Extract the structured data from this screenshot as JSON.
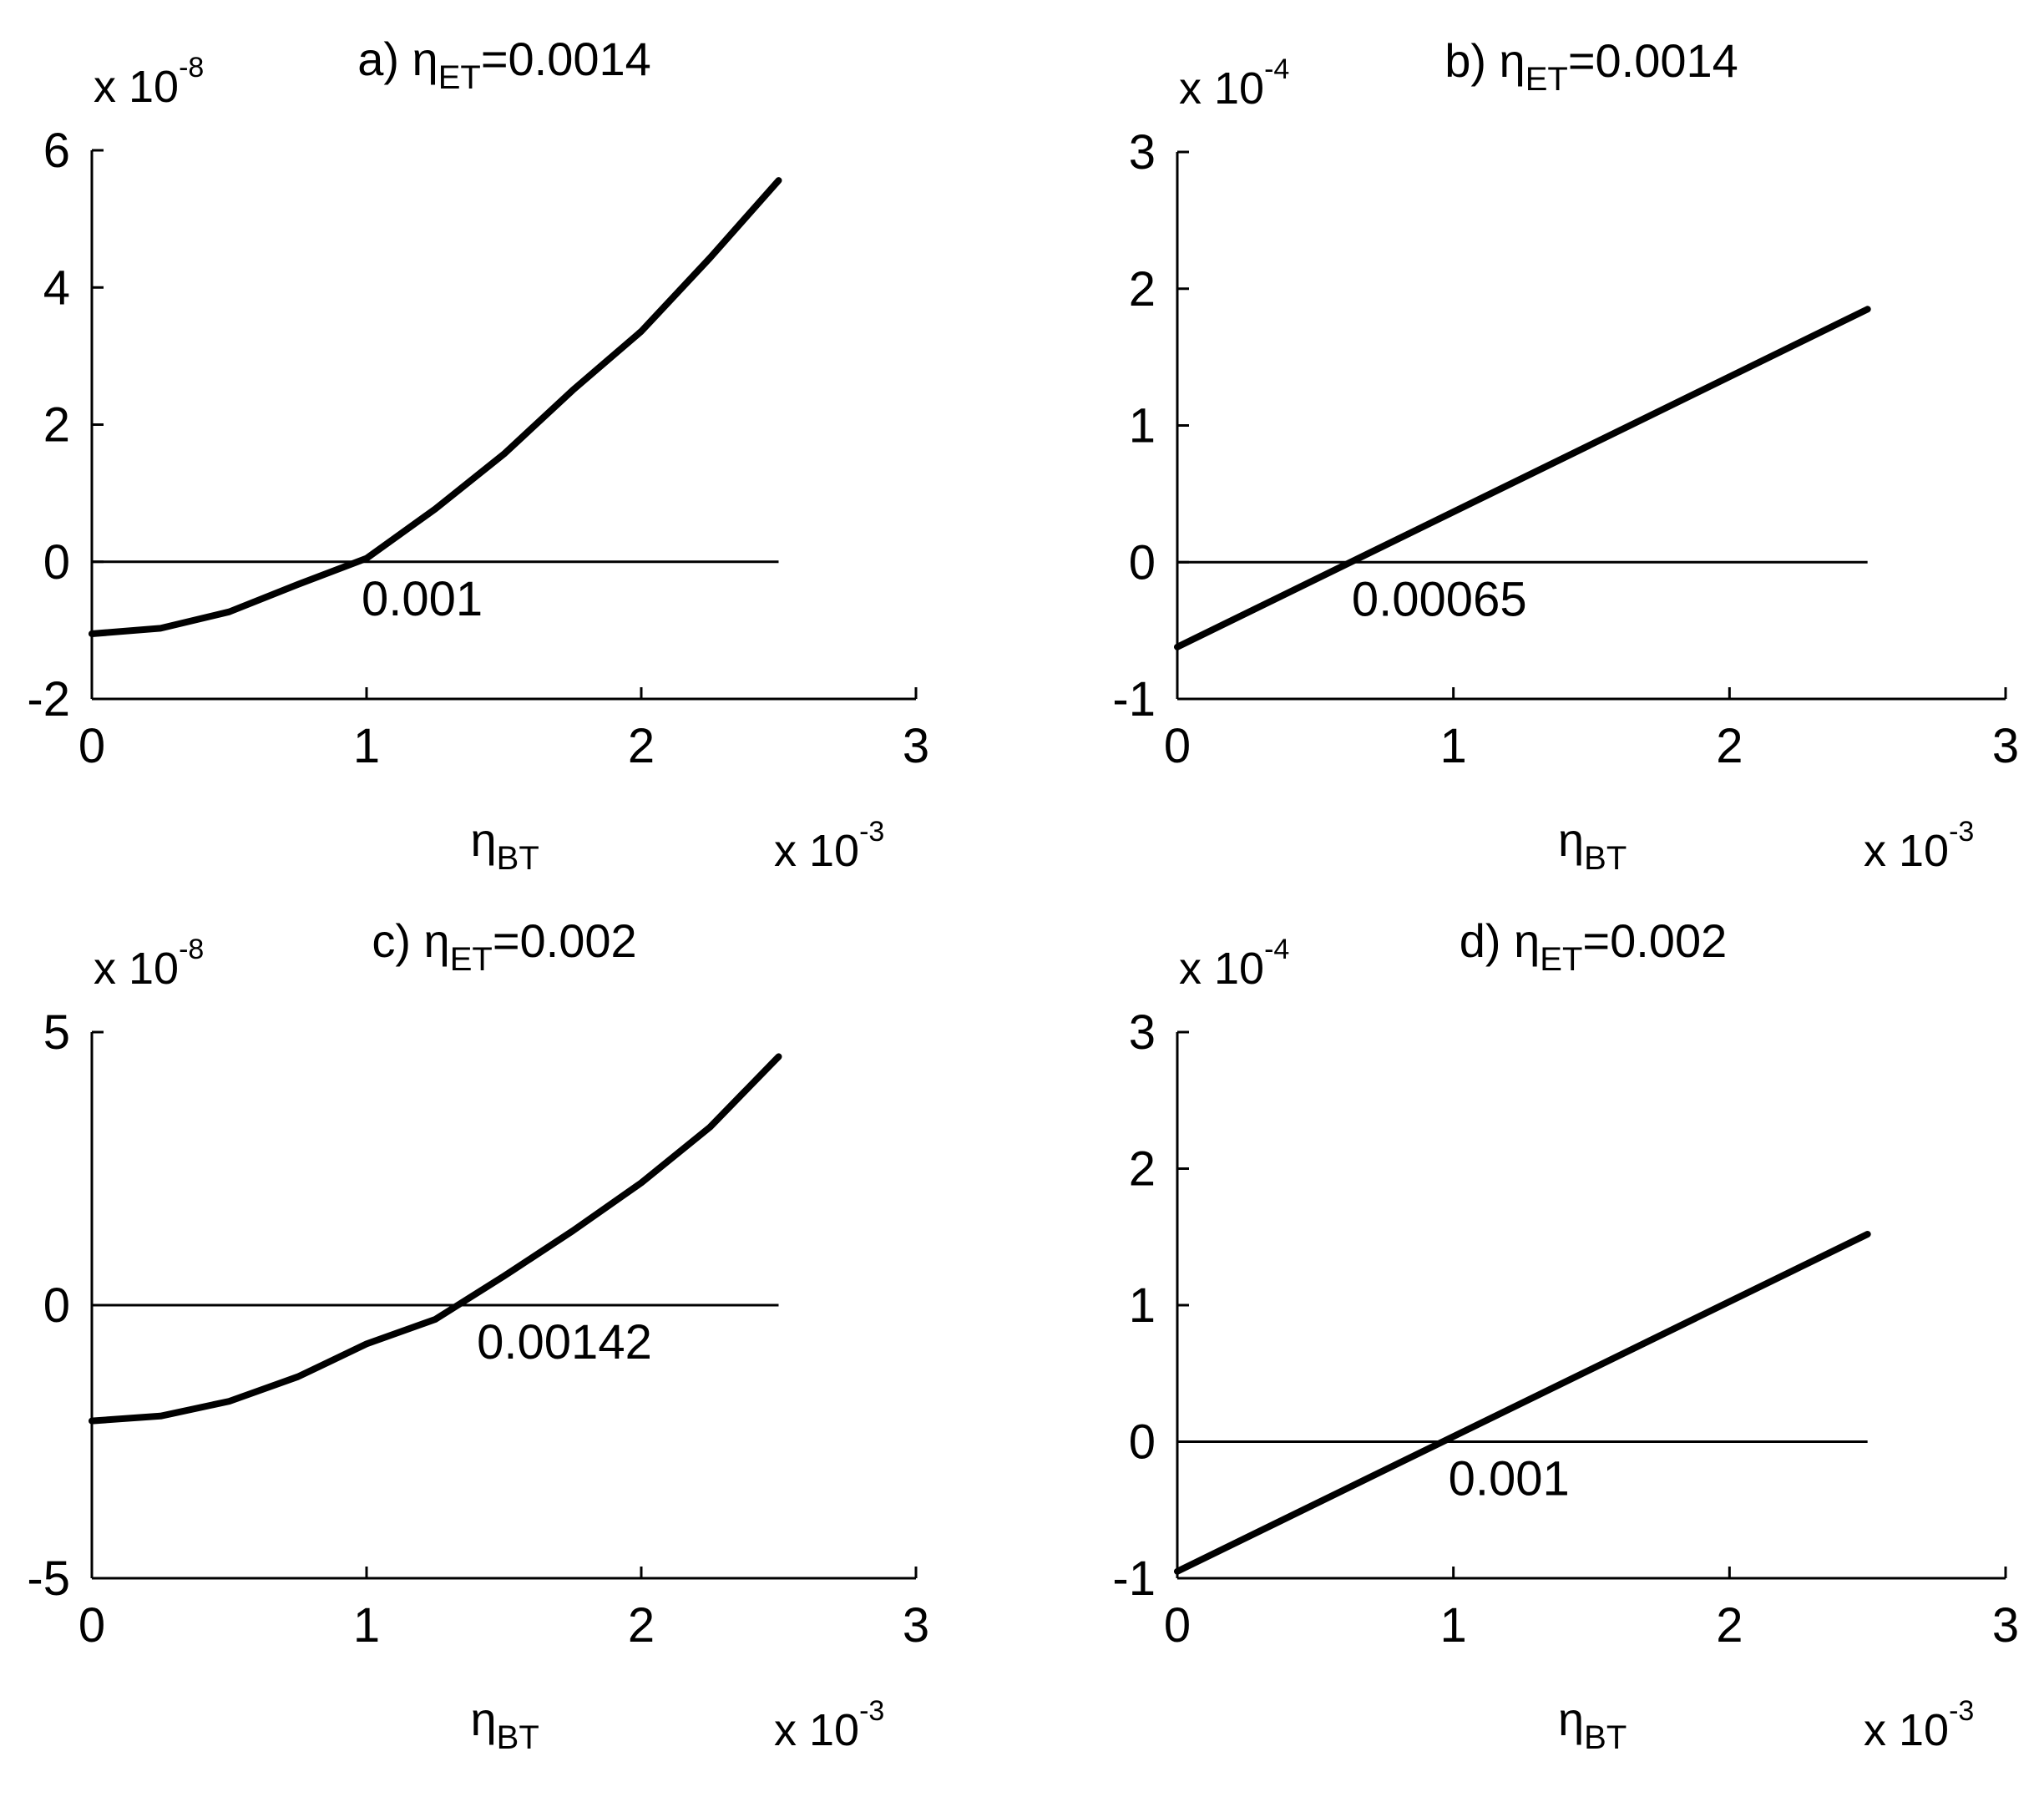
{
  "figure": {
    "background": "#ffffff",
    "line_color": "#000000"
  },
  "chart_data": [
    {
      "id": "a",
      "type": "line",
      "title": {
        "prefix": "a) ",
        "symbol": "η",
        "subscript": "ET",
        "suffix": "=0.0014"
      },
      "xlabel": {
        "symbol": "η",
        "subscript": "BT"
      },
      "x_multiplier": {
        "base": "x 10",
        "exp": "-3"
      },
      "y_multiplier": {
        "base": "x 10",
        "exp": "-8"
      },
      "xlim": [
        0,
        3
      ],
      "ylim": [
        -2,
        6
      ],
      "xticks": [
        0,
        1,
        2,
        3
      ],
      "yticks": [
        -2,
        0,
        2,
        4,
        6
      ],
      "xtick_labels": [
        "0",
        "1",
        "2",
        "3"
      ],
      "ytick_labels": [
        "-2",
        "0",
        "2",
        "4",
        "6"
      ],
      "grid": false,
      "series": [
        {
          "kind": "curve",
          "x": [
            0,
            0.25,
            0.5,
            0.75,
            1.0,
            1.25,
            1.5,
            1.75,
            2.0,
            2.25,
            2.5
          ],
          "y": [
            -1.05,
            -0.97,
            -0.73,
            -0.33,
            0.05,
            0.77,
            1.57,
            2.5,
            3.36,
            4.43,
            5.56
          ]
        },
        {
          "kind": "zero-line",
          "x": [
            0,
            2.5
          ],
          "y": [
            0,
            0
          ]
        }
      ],
      "annotation": {
        "text": "0.001",
        "x": 1.0,
        "y": 0
      }
    },
    {
      "id": "b",
      "type": "line",
      "title": {
        "prefix": "b) ",
        "symbol": "η",
        "subscript": "ET",
        "suffix": "=0.0014"
      },
      "xlabel": {
        "symbol": "η",
        "subscript": "BT"
      },
      "x_multiplier": {
        "base": "x 10",
        "exp": "-3"
      },
      "y_multiplier": {
        "base": "x 10",
        "exp": "-4"
      },
      "xlim": [
        0,
        3
      ],
      "ylim": [
        -1,
        3
      ],
      "xticks": [
        0,
        1,
        2,
        3
      ],
      "yticks": [
        -1,
        0,
        1,
        2,
        3
      ],
      "xtick_labels": [
        "0",
        "1",
        "2",
        "3"
      ],
      "ytick_labels": [
        "-1",
        "0",
        "1",
        "2",
        "3"
      ],
      "grid": false,
      "series": [
        {
          "kind": "curve",
          "x": [
            0,
            2.5
          ],
          "y": [
            -0.62,
            1.85
          ]
        },
        {
          "kind": "zero-line",
          "x": [
            0,
            2.5
          ],
          "y": [
            0,
            0
          ]
        }
      ],
      "annotation": {
        "text": "0.00065",
        "x": 0.65,
        "y": 0
      }
    },
    {
      "id": "c",
      "type": "line",
      "title": {
        "prefix": "c) ",
        "symbol": "η",
        "subscript": "ET",
        "suffix": "=0.002"
      },
      "xlabel": {
        "symbol": "η",
        "subscript": "BT"
      },
      "x_multiplier": {
        "base": "x 10",
        "exp": "-3"
      },
      "y_multiplier": {
        "base": "x 10",
        "exp": "-8"
      },
      "xlim": [
        0,
        3
      ],
      "ylim": [
        -5,
        5
      ],
      "xticks": [
        0,
        1,
        2,
        3
      ],
      "yticks": [
        -5,
        0,
        5
      ],
      "xtick_labels": [
        "0",
        "1",
        "2",
        "3"
      ],
      "ytick_labels": [
        "-5",
        "0",
        "5"
      ],
      "grid": false,
      "series": [
        {
          "kind": "curve",
          "x": [
            0,
            0.25,
            0.5,
            0.75,
            1.0,
            1.25,
            1.5,
            1.75,
            2.0,
            2.25,
            2.5
          ],
          "y": [
            -2.12,
            -2.03,
            -1.76,
            -1.31,
            -0.71,
            -0.26,
            0.53,
            1.36,
            2.24,
            3.26,
            4.55
          ]
        },
        {
          "kind": "zero-line",
          "x": [
            0,
            2.5
          ],
          "y": [
            0,
            0
          ]
        }
      ],
      "annotation": {
        "text": "0.00142",
        "x": 1.42,
        "y": 0
      }
    },
    {
      "id": "d",
      "type": "line",
      "title": {
        "prefix": "d) ",
        "symbol": "η",
        "subscript": "ET",
        "suffix": "=0.002"
      },
      "xlabel": {
        "symbol": "η",
        "subscript": "BT"
      },
      "x_multiplier": {
        "base": "x 10",
        "exp": "-3"
      },
      "y_multiplier": {
        "base": "x 10",
        "exp": "-4"
      },
      "xlim": [
        0,
        3
      ],
      "ylim": [
        -1,
        3
      ],
      "xticks": [
        0,
        1,
        2,
        3
      ],
      "yticks": [
        -1,
        0,
        1,
        2,
        3
      ],
      "xtick_labels": [
        "0",
        "1",
        "2",
        "3"
      ],
      "ytick_labels": [
        "-1",
        "0",
        "1",
        "2",
        "3"
      ],
      "grid": false,
      "series": [
        {
          "kind": "curve",
          "x": [
            0,
            2.5
          ],
          "y": [
            -0.95,
            1.52
          ]
        },
        {
          "kind": "zero-line",
          "x": [
            0,
            2.5
          ],
          "y": [
            0,
            0
          ]
        }
      ],
      "annotation": {
        "text": "0.001",
        "x": 1.0,
        "y": 0
      }
    }
  ]
}
